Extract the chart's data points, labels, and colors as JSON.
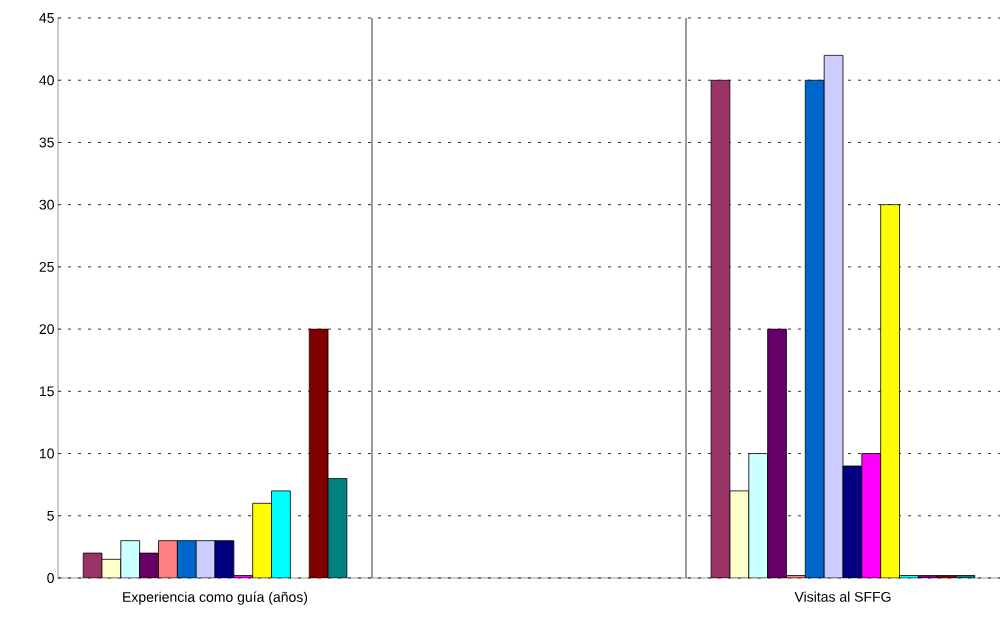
{
  "chart_data": {
    "type": "bar",
    "categories": [
      "Experiencia como guía (años)",
      null,
      "Visitas al SFFG"
    ],
    "series": [
      {
        "color": "#993366",
        "values": [
          2,
          null,
          40
        ]
      },
      {
        "color": "#ffffcc",
        "values": [
          1.5,
          null,
          7
        ]
      },
      {
        "color": "#ccffff",
        "values": [
          3,
          null,
          10
        ]
      },
      {
        "color": "#660066",
        "values": [
          2,
          null,
          20
        ]
      },
      {
        "color": "#ff8080",
        "values": [
          3,
          null,
          0.2
        ]
      },
      {
        "color": "#0066cc",
        "values": [
          3,
          null,
          40
        ]
      },
      {
        "color": "#ccccff",
        "values": [
          3,
          null,
          42
        ]
      },
      {
        "color": "#000080",
        "values": [
          3,
          null,
          9
        ]
      },
      {
        "color": "#ff00ff",
        "values": [
          0.2,
          null,
          10
        ]
      },
      {
        "color": "#ffff00",
        "values": [
          6,
          null,
          30
        ]
      },
      {
        "color": "#00ffff",
        "values": [
          7,
          null,
          0.2
        ]
      },
      {
        "color": "#800080",
        "values": [
          null,
          null,
          0.2
        ]
      },
      {
        "color": "#800000",
        "values": [
          20,
          null,
          0.2
        ]
      },
      {
        "color": "#008080",
        "values": [
          8,
          null,
          0.2
        ]
      }
    ],
    "ylim": [
      0,
      45
    ],
    "yticks": [
      0,
      5,
      10,
      15,
      20,
      25,
      30,
      35,
      40,
      45
    ],
    "grid": true
  }
}
